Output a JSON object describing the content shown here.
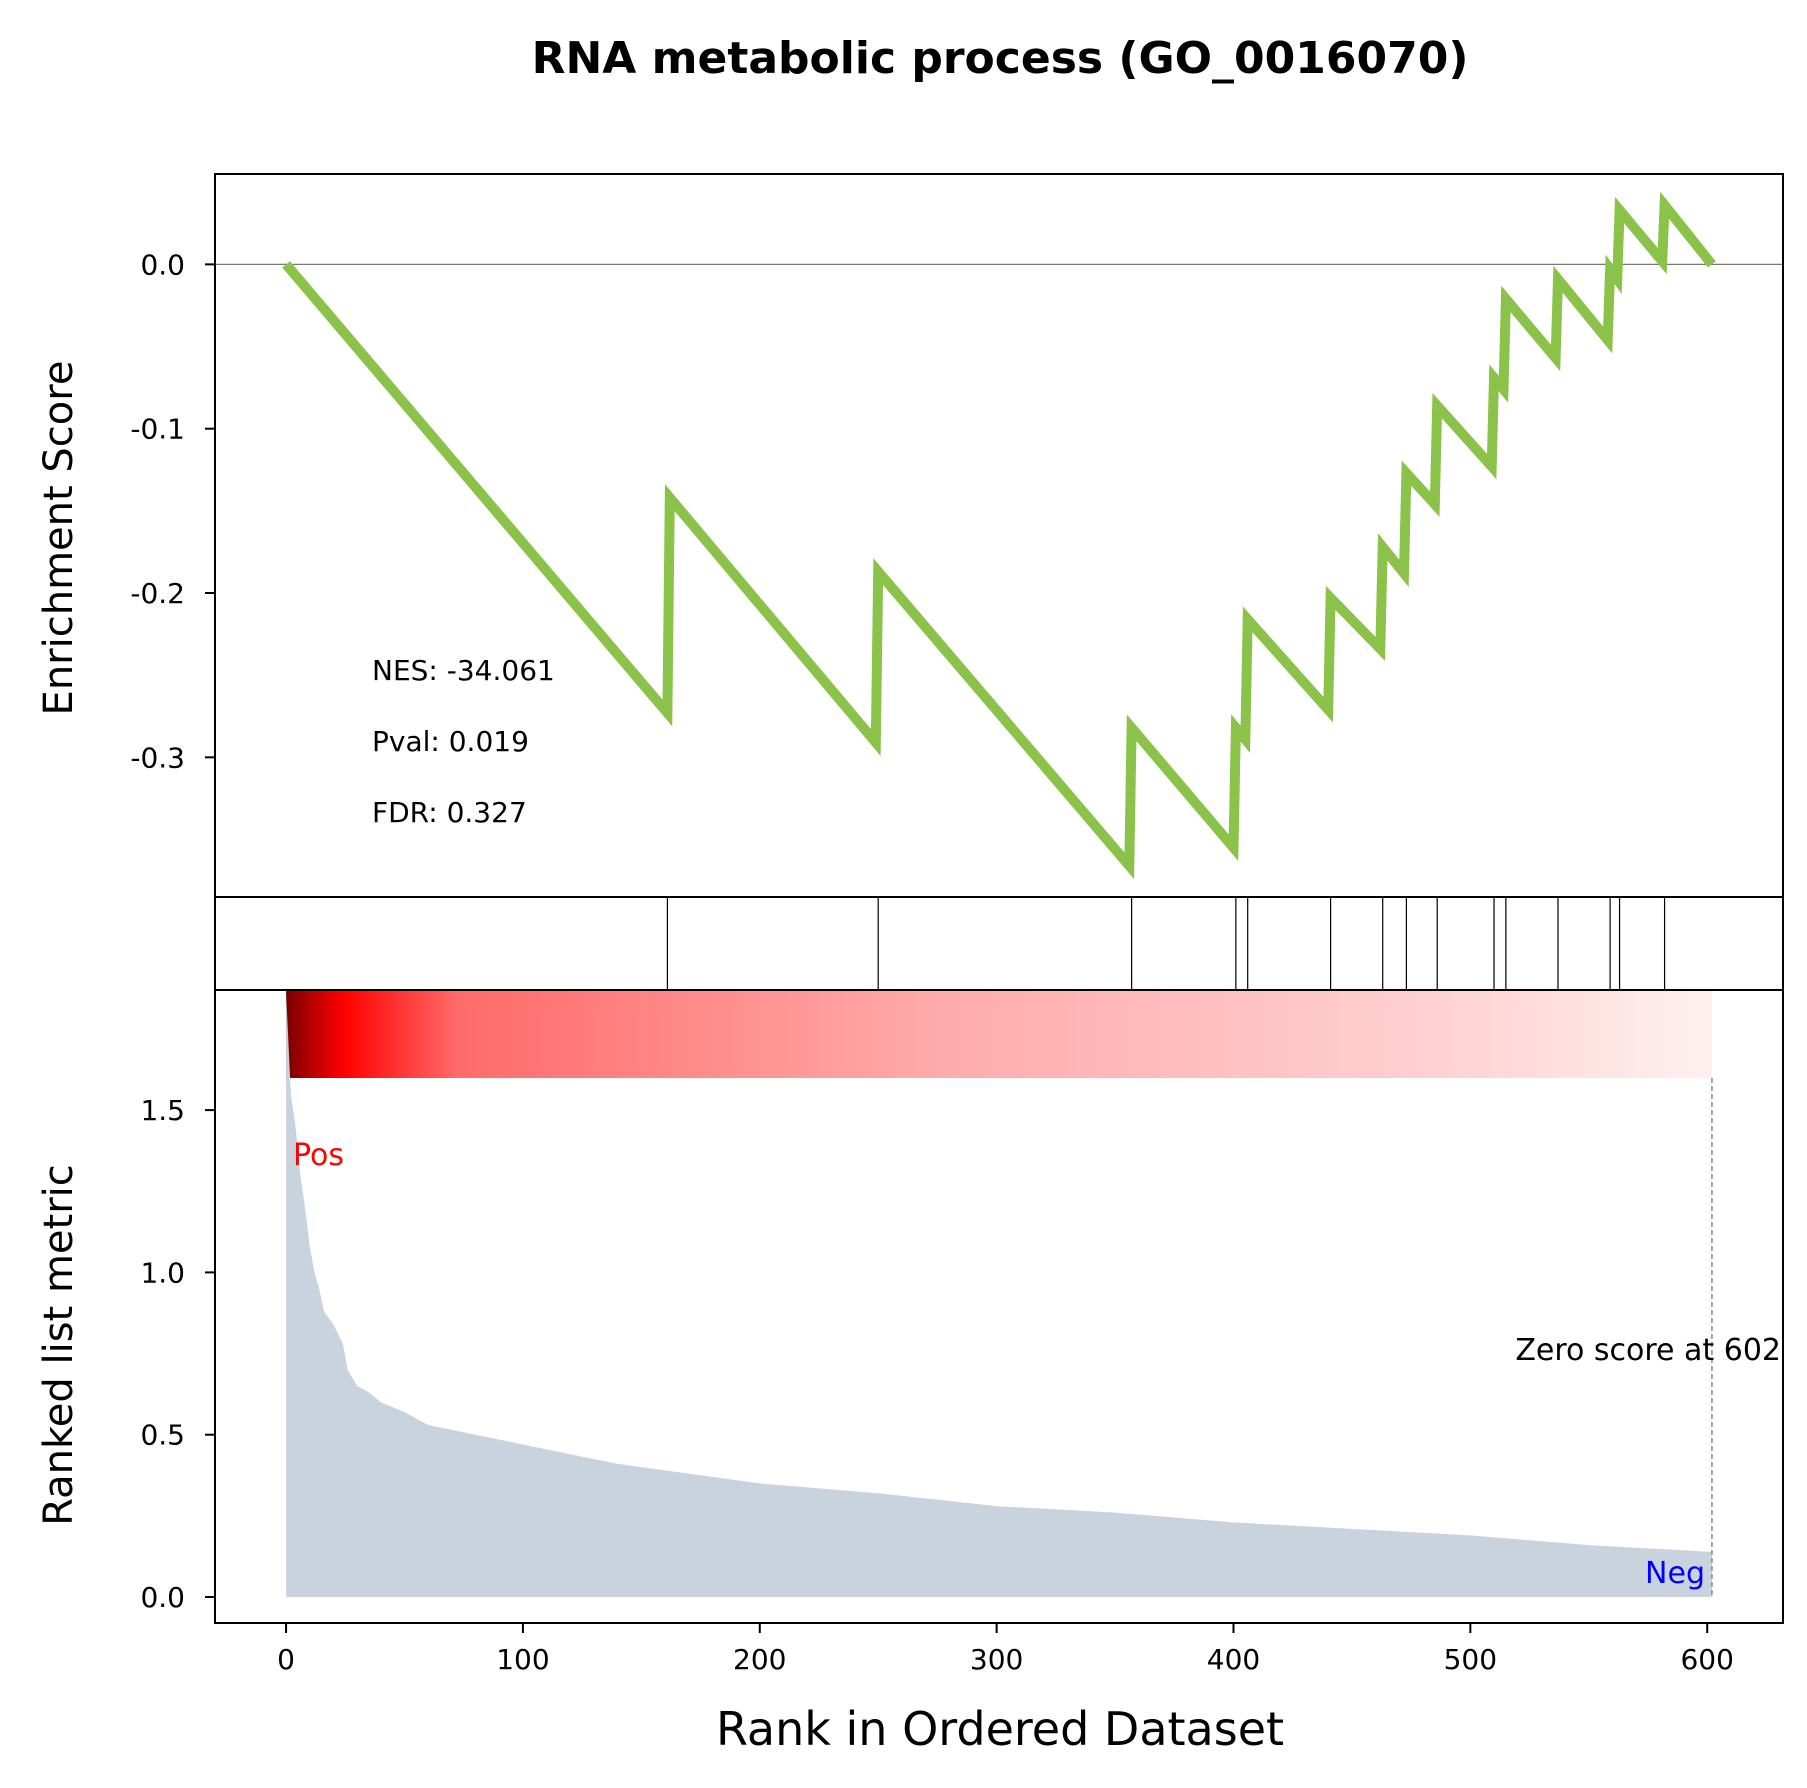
{
  "chart_data": {
    "type": "line",
    "title": "RNA metabolic process (GO_0016070)",
    "xlabel": "Rank in Ordered Dataset",
    "xlim": [
      -30,
      632
    ],
    "xticks": [
      0,
      100,
      200,
      300,
      400,
      500,
      600
    ],
    "colors": {
      "es_line": "#8bc34a",
      "metric_fill": "#c8d3dd",
      "pos_label": "#ff0000",
      "neg_label": "#0000ff",
      "heat_high": "#7a0000",
      "heat_mid": "#ff0000",
      "heat_low": "#fff0f0"
    },
    "enrichment": {
      "ylabel": "Enrichment Score",
      "ylim": [
        -0.385,
        0.055
      ],
      "yticks": [
        0.0,
        -0.1,
        -0.2,
        -0.3
      ],
      "ytick_labels": [
        "0.0",
        "-0.1",
        "-0.2",
        "-0.3"
      ],
      "stats": [
        "NES: -34.061",
        "Pval: 0.019",
        "FDR: 0.327"
      ],
      "points": [
        [
          0,
          0.0
        ],
        [
          161,
          -0.273
        ],
        [
          162,
          -0.142
        ],
        [
          249,
          -0.291
        ],
        [
          250,
          -0.187
        ],
        [
          356,
          -0.366
        ],
        [
          357,
          -0.282
        ],
        [
          400,
          -0.355
        ],
        [
          401,
          -0.282
        ],
        [
          405,
          -0.289
        ],
        [
          406,
          -0.216
        ],
        [
          440,
          -0.271
        ],
        [
          441,
          -0.203
        ],
        [
          462,
          -0.234
        ],
        [
          463,
          -0.172
        ],
        [
          472,
          -0.188
        ],
        [
          473,
          -0.127
        ],
        [
          485,
          -0.146
        ],
        [
          486,
          -0.086
        ],
        [
          509,
          -0.123
        ],
        [
          510,
          -0.069
        ],
        [
          514,
          -0.076
        ],
        [
          515,
          -0.021
        ],
        [
          536,
          -0.057
        ],
        [
          537,
          -0.009
        ],
        [
          558,
          -0.046
        ],
        [
          559,
          -0.003
        ],
        [
          562,
          -0.009
        ],
        [
          563,
          0.033
        ],
        [
          581,
          0.002
        ],
        [
          582,
          0.036
        ],
        [
          602,
          0.0
        ]
      ]
    },
    "hits": {
      "positions": [
        161,
        250,
        357,
        401,
        406,
        441,
        463,
        473,
        486,
        510,
        515,
        537,
        559,
        563,
        582
      ]
    },
    "ranked": {
      "ylabel": "Ranked list metric",
      "ylim": [
        -0.08,
        1.87
      ],
      "yticks": [
        0.0,
        0.5,
        1.0,
        1.5
      ],
      "ytick_labels": [
        "0.0",
        "0.5",
        "1.0",
        "1.5"
      ],
      "pos_label": "Pos",
      "neg_label": "Neg",
      "zero_label": "Zero score at 602",
      "zero_x": 602,
      "points": [
        [
          0,
          1.86
        ],
        [
          2,
          1.55
        ],
        [
          4,
          1.45
        ],
        [
          6,
          1.3
        ],
        [
          8,
          1.2
        ],
        [
          10,
          1.08
        ],
        [
          12,
          1.0
        ],
        [
          14,
          0.95
        ],
        [
          16,
          0.88
        ],
        [
          20,
          0.84
        ],
        [
          24,
          0.78
        ],
        [
          26,
          0.7
        ],
        [
          30,
          0.65
        ],
        [
          35,
          0.63
        ],
        [
          40,
          0.6
        ],
        [
          50,
          0.57
        ],
        [
          60,
          0.53
        ],
        [
          80,
          0.5
        ],
        [
          100,
          0.47
        ],
        [
          120,
          0.44
        ],
        [
          140,
          0.41
        ],
        [
          160,
          0.39
        ],
        [
          180,
          0.37
        ],
        [
          200,
          0.35
        ],
        [
          250,
          0.32
        ],
        [
          300,
          0.28
        ],
        [
          350,
          0.26
        ],
        [
          400,
          0.23
        ],
        [
          450,
          0.21
        ],
        [
          500,
          0.19
        ],
        [
          550,
          0.16
        ],
        [
          600,
          0.14
        ],
        [
          602,
          0.14
        ]
      ]
    }
  }
}
